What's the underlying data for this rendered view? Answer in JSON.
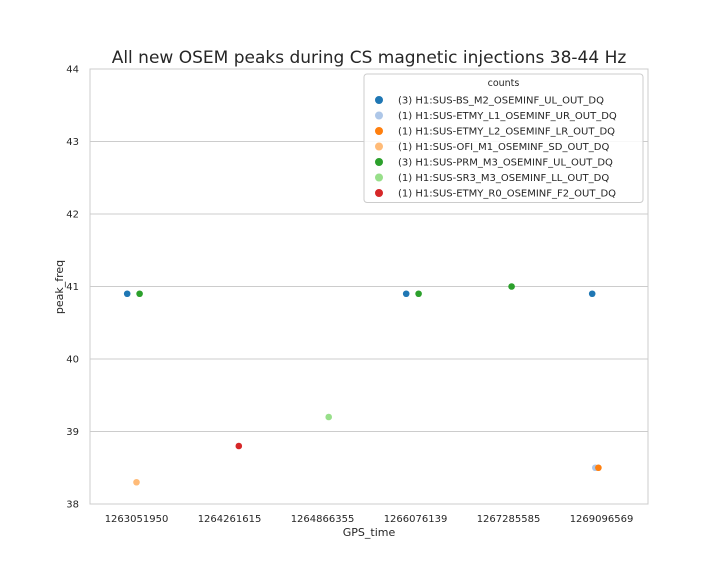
{
  "chart_data": {
    "type": "scatter",
    "title": "All new OSEM peaks during CS magnetic injections 38-44 Hz",
    "xlabel": "GPS_time",
    "ylabel": "peak_freq",
    "categories": [
      "1263051950",
      "1264261615",
      "1264866355",
      "1266076139",
      "1267285585",
      "1269096569"
    ],
    "ylim": [
      38,
      44
    ],
    "yticks": [
      38,
      39,
      40,
      41,
      42,
      43,
      44
    ],
    "grid": "horizontal",
    "legend": {
      "title": "counts",
      "placement": "top-right"
    },
    "series": [
      {
        "name": "(3) H1:SUS-BS_M2_OSEMINF_UL_OUT_DQ",
        "color": "#1f77b4",
        "points": [
          {
            "x": "1263051950",
            "y": 40.9
          },
          {
            "x": "1266076139",
            "y": 40.9
          },
          {
            "x": "1269096569",
            "y": 40.9
          }
        ]
      },
      {
        "name": "(1) H1:SUS-ETMY_L1_OSEMINF_UR_OUT_DQ",
        "color": "#aec7e8",
        "points": [
          {
            "x": "1269096569",
            "y": 38.5
          }
        ]
      },
      {
        "name": "(1) H1:SUS-ETMY_L2_OSEMINF_LR_OUT_DQ",
        "color": "#ff7f0e",
        "points": [
          {
            "x": "1269096569",
            "y": 38.5
          }
        ]
      },
      {
        "name": "(1) H1:SUS-OFI_M1_OSEMINF_SD_OUT_DQ",
        "color": "#ffbb78",
        "points": [
          {
            "x": "1263051950",
            "y": 38.3
          }
        ]
      },
      {
        "name": "(3) H1:SUS-PRM_M3_OSEMINF_UL_OUT_DQ",
        "color": "#2ca02c",
        "points": [
          {
            "x": "1263051950",
            "y": 40.9
          },
          {
            "x": "1266076139",
            "y": 40.9
          },
          {
            "x": "1267285585",
            "y": 41.0
          }
        ]
      },
      {
        "name": "(1) H1:SUS-SR3_M3_OSEMINF_LL_OUT_DQ",
        "color": "#98df8a",
        "points": [
          {
            "x": "1264866355",
            "y": 39.2
          }
        ]
      },
      {
        "name": "(1) H1:SUS-ETMY_R0_OSEMINF_F2_OUT_DQ",
        "color": "#d62728",
        "points": [
          {
            "x": "1264261615",
            "y": 38.8
          }
        ]
      }
    ]
  }
}
